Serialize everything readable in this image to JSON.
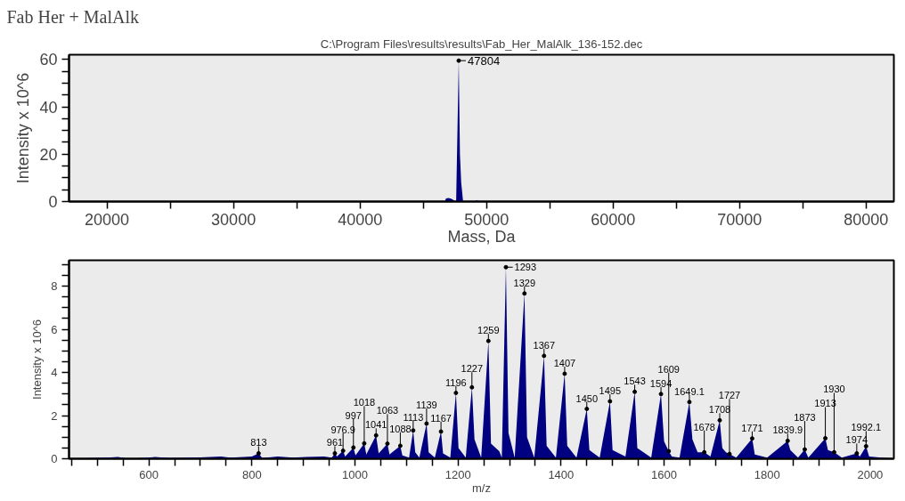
{
  "chart_data": [
    {
      "type": "area",
      "title": "Fab Her + MalAlk",
      "subtitle": "C:\\Program Files\\results\\results\\Fab_Her_MalAlk_136-152.dec",
      "xlabel": "Mass, Da",
      "ylabel": "Intensity x 10^6",
      "xlim": [
        17000,
        82200
      ],
      "ylim": [
        0,
        62
      ],
      "xticks": [
        20000,
        {
          "value": 25000,
          "label": null
        },
        30000,
        {
          "value": 35000,
          "label": null
        },
        40000,
        {
          "value": 45000,
          "label": null
        },
        50000,
        {
          "value": 55000,
          "label": null
        },
        60000,
        {
          "value": 65000,
          "label": null
        },
        70000,
        {
          "value": 75000,
          "label": null
        },
        80000
      ],
      "yticks": [
        0,
        {
          "value": 5,
          "label": null
        },
        {
          "value": 10,
          "label": null
        },
        {
          "value": 15,
          "label": null
        },
        20,
        {
          "value": 25,
          "label": null
        },
        {
          "value": 30,
          "label": null
        },
        {
          "value": 35,
          "label": null
        },
        40,
        {
          "value": 45,
          "label": null
        },
        {
          "value": 50,
          "label": null
        },
        {
          "value": 55,
          "label": null
        },
        60
      ],
      "grid": false,
      "series": [
        {
          "color": "#000080",
          "x": [
            17000,
            23400,
            23500,
            23600,
            46700,
            46800,
            47000,
            47200,
            47600,
            47804,
            47900,
            48000,
            48150,
            49100,
            49200,
            49500,
            82200
          ],
          "values": [
            0,
            0,
            0.3,
            0,
            0,
            1.3,
            1.5,
            1.2,
            0,
            59.5,
            20,
            8,
            0,
            0,
            0.6,
            0,
            0
          ]
        }
      ],
      "annotations": [
        {
          "text": "47804",
          "x": 47804,
          "y": 59.5
        }
      ]
    },
    {
      "type": "area",
      "xlabel": "m/z",
      "ylabel": "Intensity x 10^6",
      "xlim": [
        445,
        2046
      ],
      "ylim": [
        0,
        9.2
      ],
      "xticks": [
        {
          "value": 450,
          "label": null
        },
        {
          "value": 500,
          "label": null
        },
        {
          "value": 550,
          "label": null
        },
        600,
        {
          "value": 650,
          "label": null
        },
        {
          "value": 700,
          "label": null
        },
        {
          "value": 750,
          "label": null
        },
        800,
        {
          "value": 850,
          "label": null
        },
        {
          "value": 900,
          "label": null
        },
        {
          "value": 950,
          "label": null
        },
        1000,
        {
          "value": 1050,
          "label": null
        },
        {
          "value": 1100,
          "label": null
        },
        {
          "value": 1150,
          "label": null
        },
        1200,
        {
          "value": 1250,
          "label": null
        },
        {
          "value": 1300,
          "label": null
        },
        {
          "value": 1350,
          "label": null
        },
        1400,
        {
          "value": 1450,
          "label": null
        },
        {
          "value": 1500,
          "label": null
        },
        {
          "value": 1550,
          "label": null
        },
        1600,
        {
          "value": 1650,
          "label": null
        },
        {
          "value": 1700,
          "label": null
        },
        {
          "value": 1750,
          "label": null
        },
        1800,
        {
          "value": 1850,
          "label": null
        },
        {
          "value": 1900,
          "label": null
        },
        {
          "value": 1950,
          "label": null
        },
        2000
      ],
      "yticks": [
        0,
        {
          "value": 0.5,
          "label": null
        },
        {
          "value": 1,
          "label": null
        },
        {
          "value": 1.5,
          "label": null
        },
        2,
        {
          "value": 2.5,
          "label": null
        },
        {
          "value": 3,
          "label": null
        },
        {
          "value": 3.5,
          "label": null
        },
        4,
        {
          "value": 4.5,
          "label": null
        },
        {
          "value": 5,
          "label": null
        },
        {
          "value": 5.5,
          "label": null
        },
        6,
        {
          "value": 6.5,
          "label": null
        },
        {
          "value": 7,
          "label": null
        },
        {
          "value": 7.5,
          "label": null
        },
        8,
        {
          "value": 8.5,
          "label": null
        },
        {
          "value": 9,
          "label": null
        }
      ],
      "grid": false,
      "series": [
        {
          "color": "#000080",
          "x": [
            445,
            520,
            540,
            560,
            600,
            612,
            640,
            700,
            740,
            760,
            800,
            813,
            820,
            850,
            880,
            905,
            940,
            955,
            961,
            965,
            976.9,
            981,
            997,
            1001,
            1018,
            1022,
            1041,
            1046,
            1063,
            1067,
            1088,
            1092,
            1105,
            1113,
            1117,
            1125,
            1139,
            1143,
            1155,
            1167,
            1171,
            1185,
            1196,
            1201,
            1215,
            1227,
            1232,
            1245,
            1259,
            1264,
            1280,
            1285,
            1293,
            1298,
            1310,
            1329,
            1334,
            1348,
            1367,
            1372,
            1390,
            1407,
            1412,
            1430,
            1450,
            1455,
            1475,
            1495,
            1500,
            1525,
            1543,
            1548,
            1575,
            1594,
            1600,
            1609,
            1615,
            1630,
            1649.1,
            1655,
            1665,
            1678,
            1690,
            1708,
            1713,
            1720,
            1727,
            1740,
            1771,
            1776,
            1800,
            1839.9,
            1845,
            1860,
            1873,
            1880,
            1913,
            1918,
            1930,
            1945,
            1974,
            1980,
            1992.1,
            1998,
            2046
          ],
          "values": [
            0,
            0.05,
            0.08,
            0,
            0.05,
            0.08,
            0.03,
            0.06,
            0.1,
            0.05,
            0.1,
            0.25,
            0.03,
            0.1,
            0.05,
            0.08,
            0.1,
            0.05,
            0.25,
            0.1,
            0.37,
            0.1,
            0.52,
            0.15,
            0.71,
            0.2,
            1.08,
            0.25,
            0.7,
            0.2,
            0.6,
            0.15,
            0.05,
            1.31,
            0.3,
            0.05,
            1.63,
            0.3,
            0.05,
            1.26,
            0.25,
            0.05,
            3.05,
            0.5,
            0.05,
            3.31,
            0.9,
            0.05,
            5.46,
            0.7,
            0.35,
            0.05,
            8.88,
            1.2,
            0.05,
            7.66,
            1.0,
            0.05,
            4.77,
            0.6,
            0.05,
            3.94,
            0.6,
            0.05,
            2.31,
            0.4,
            0.05,
            2.66,
            0.4,
            0.1,
            3.1,
            0.5,
            0.05,
            3.0,
            0.8,
            0.35,
            0.1,
            0.05,
            2.63,
            0.9,
            0.3,
            0.3,
            0.1,
            1.78,
            0.5,
            0.3,
            0.22,
            0.05,
            0.94,
            0.2,
            0.05,
            0.83,
            0.4,
            0.05,
            0.43,
            0.05,
            0.95,
            0.4,
            0.3,
            0.05,
            0.25,
            0.1,
            0.58,
            0.1,
            0
          ]
        }
      ],
      "annotations": [
        {
          "text": "813",
          "x": 813,
          "y": 0.25
        },
        {
          "text": "961",
          "x": 961,
          "y": 0.25
        },
        {
          "text": "976.9",
          "x": 976.9,
          "y": 0.37
        },
        {
          "text": "997",
          "x": 997,
          "y": 0.52
        },
        {
          "text": "1018",
          "x": 1018,
          "y": 0.71
        },
        {
          "text": "1041",
          "x": 1041,
          "y": 1.08
        },
        {
          "text": "1063",
          "x": 1063,
          "y": 0.7
        },
        {
          "text": "1088",
          "x": 1088,
          "y": 0.6
        },
        {
          "text": "1113",
          "x": 1113,
          "y": 1.31
        },
        {
          "text": "1139",
          "x": 1139,
          "y": 1.63
        },
        {
          "text": "1167",
          "x": 1167,
          "y": 1.26
        },
        {
          "text": "1196",
          "x": 1196,
          "y": 3.05
        },
        {
          "text": "1227",
          "x": 1227,
          "y": 3.31
        },
        {
          "text": "1259",
          "x": 1259,
          "y": 5.46
        },
        {
          "text": "1293",
          "x": 1293,
          "y": 8.88
        },
        {
          "text": "1329",
          "x": 1329,
          "y": 7.66
        },
        {
          "text": "1367",
          "x": 1367,
          "y": 4.77
        },
        {
          "text": "1407",
          "x": 1407,
          "y": 3.94
        },
        {
          "text": "1450",
          "x": 1450,
          "y": 2.31
        },
        {
          "text": "1495",
          "x": 1495,
          "y": 2.66
        },
        {
          "text": "1543",
          "x": 1543,
          "y": 3.1
        },
        {
          "text": "1594",
          "x": 1594,
          "y": 3.0
        },
        {
          "text": "1609",
          "x": 1609,
          "y": 0.35
        },
        {
          "text": "1649.1",
          "x": 1649.1,
          "y": 2.63
        },
        {
          "text": "1678",
          "x": 1678,
          "y": 0.3
        },
        {
          "text": "1708",
          "x": 1708,
          "y": 1.78
        },
        {
          "text": "1727",
          "x": 1727,
          "y": 0.22
        },
        {
          "text": "1771",
          "x": 1771,
          "y": 0.94
        },
        {
          "text": "1839.9",
          "x": 1839.9,
          "y": 0.83
        },
        {
          "text": "1873",
          "x": 1873,
          "y": 0.43
        },
        {
          "text": "1913",
          "x": 1913,
          "y": 0.95
        },
        {
          "text": "1930",
          "x": 1930,
          "y": 0.3
        },
        {
          "text": "1974",
          "x": 1974,
          "y": 0.25
        },
        {
          "text": "1992.1",
          "x": 1992.1,
          "y": 0.58
        }
      ]
    }
  ]
}
